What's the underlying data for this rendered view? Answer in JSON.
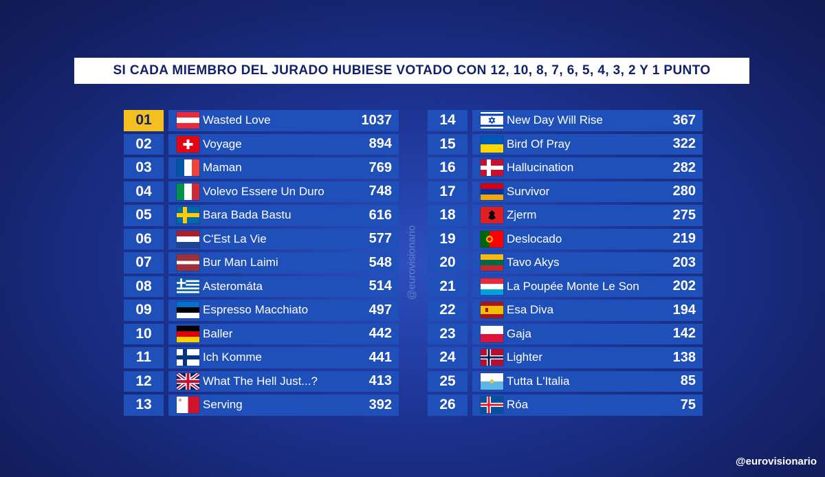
{
  "title": "SI CADA MIEMBRO DEL JURADO HUBIESE VOTADO CON 12, 10, 8, 7, 6, 5, 4, 3, 2 Y 1 PUNTO",
  "colors": {
    "highlight_rank": "#f4c020",
    "row_bg": "#1f4fb8",
    "title_text": "#13206a"
  },
  "left_column": [
    {
      "rank": "01",
      "song": "Wasted Love",
      "points": "1037",
      "flag": "austria-flag"
    },
    {
      "rank": "02",
      "song": "Voyage",
      "points": "894",
      "flag": "switzerland-flag"
    },
    {
      "rank": "03",
      "song": "Maman",
      "points": "769",
      "flag": "france-flag"
    },
    {
      "rank": "04",
      "song": "Volevo Essere Un Duro",
      "points": "748",
      "flag": "italy-flag"
    },
    {
      "rank": "05",
      "song": "Bara Bada Bastu",
      "points": "616",
      "flag": "sweden-flag"
    },
    {
      "rank": "06",
      "song": "C'Est La Vie",
      "points": "577",
      "flag": "netherlands-flag"
    },
    {
      "rank": "07",
      "song": "Bur Man Laimi",
      "points": "548",
      "flag": "latvia-flag"
    },
    {
      "rank": "08",
      "song": "Asteromáta",
      "points": "514",
      "flag": "greece-flag"
    },
    {
      "rank": "09",
      "song": "Espresso Macchiato",
      "points": "497",
      "flag": "estonia-flag"
    },
    {
      "rank": "10",
      "song": "Baller",
      "points": "442",
      "flag": "germany-flag"
    },
    {
      "rank": "11",
      "song": "Ich Komme",
      "points": "441",
      "flag": "finland-flag"
    },
    {
      "rank": "12",
      "song": "What The Hell Just...?",
      "points": "413",
      "flag": "united-kingdom-flag"
    },
    {
      "rank": "13",
      "song": "Serving",
      "points": "392",
      "flag": "malta-flag"
    }
  ],
  "right_column": [
    {
      "rank": "14",
      "song": "New Day Will Rise",
      "points": "367",
      "flag": "israel-flag"
    },
    {
      "rank": "15",
      "song": "Bird Of Pray",
      "points": "322",
      "flag": "ukraine-flag"
    },
    {
      "rank": "16",
      "song": "Hallucination",
      "points": "282",
      "flag": "denmark-flag"
    },
    {
      "rank": "17",
      "song": "Survivor",
      "points": "280",
      "flag": "armenia-flag"
    },
    {
      "rank": "18",
      "song": "Zjerm",
      "points": "275",
      "flag": "albania-flag"
    },
    {
      "rank": "19",
      "song": "Deslocado",
      "points": "219",
      "flag": "portugal-flag"
    },
    {
      "rank": "20",
      "song": "Tavo Akys",
      "points": "203",
      "flag": "lithuania-flag"
    },
    {
      "rank": "21",
      "song": "La Poupée Monte Le Son",
      "points": "202",
      "flag": "luxembourg-flag"
    },
    {
      "rank": "22",
      "song": "Esa Diva",
      "points": "194",
      "flag": "spain-flag"
    },
    {
      "rank": "23",
      "song": "Gaja",
      "points": "142",
      "flag": "poland-flag"
    },
    {
      "rank": "24",
      "song": "Lighter",
      "points": "138",
      "flag": "norway-flag"
    },
    {
      "rank": "25",
      "song": "Tutta L'Italia",
      "points": "85",
      "flag": "san-marino-flag"
    },
    {
      "rank": "26",
      "song": "Róa",
      "points": "75",
      "flag": "iceland-flag"
    }
  ],
  "watermark_side": "@eurovisionario",
  "watermark_corner": "@eurovisionario"
}
